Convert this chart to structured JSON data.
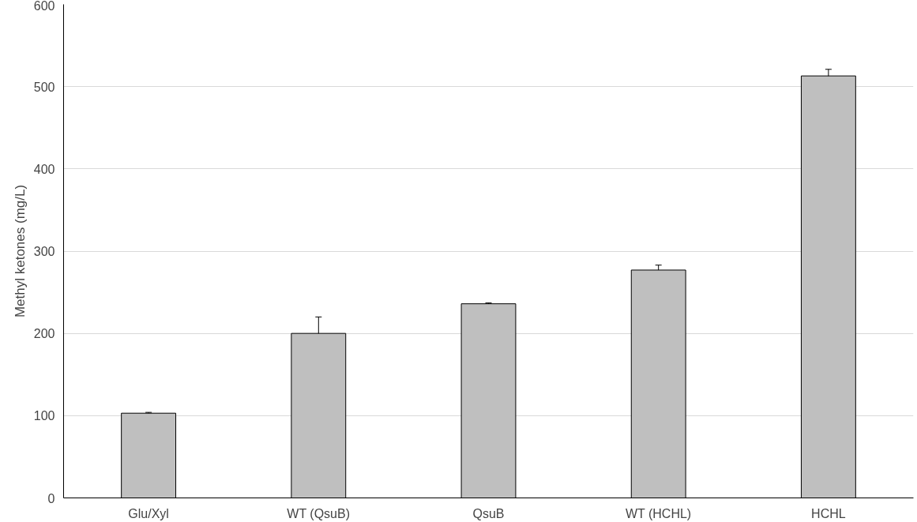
{
  "chart_data": {
    "type": "bar",
    "ylabel": "Methyl ketones (mg/L)",
    "categories": [
      "Glu/Xyl",
      "WT (QsuB)",
      "QsuB",
      "WT (HCHL)",
      "HCHL"
    ],
    "values": [
      103,
      200,
      236,
      277,
      513
    ],
    "errors": [
      1,
      20,
      1,
      6,
      8
    ],
    "color": "#bfbfbf",
    "ylim": [
      0,
      600
    ],
    "yticks": [
      0,
      100,
      200,
      300,
      400,
      500,
      600
    ],
    "grid": "y"
  }
}
